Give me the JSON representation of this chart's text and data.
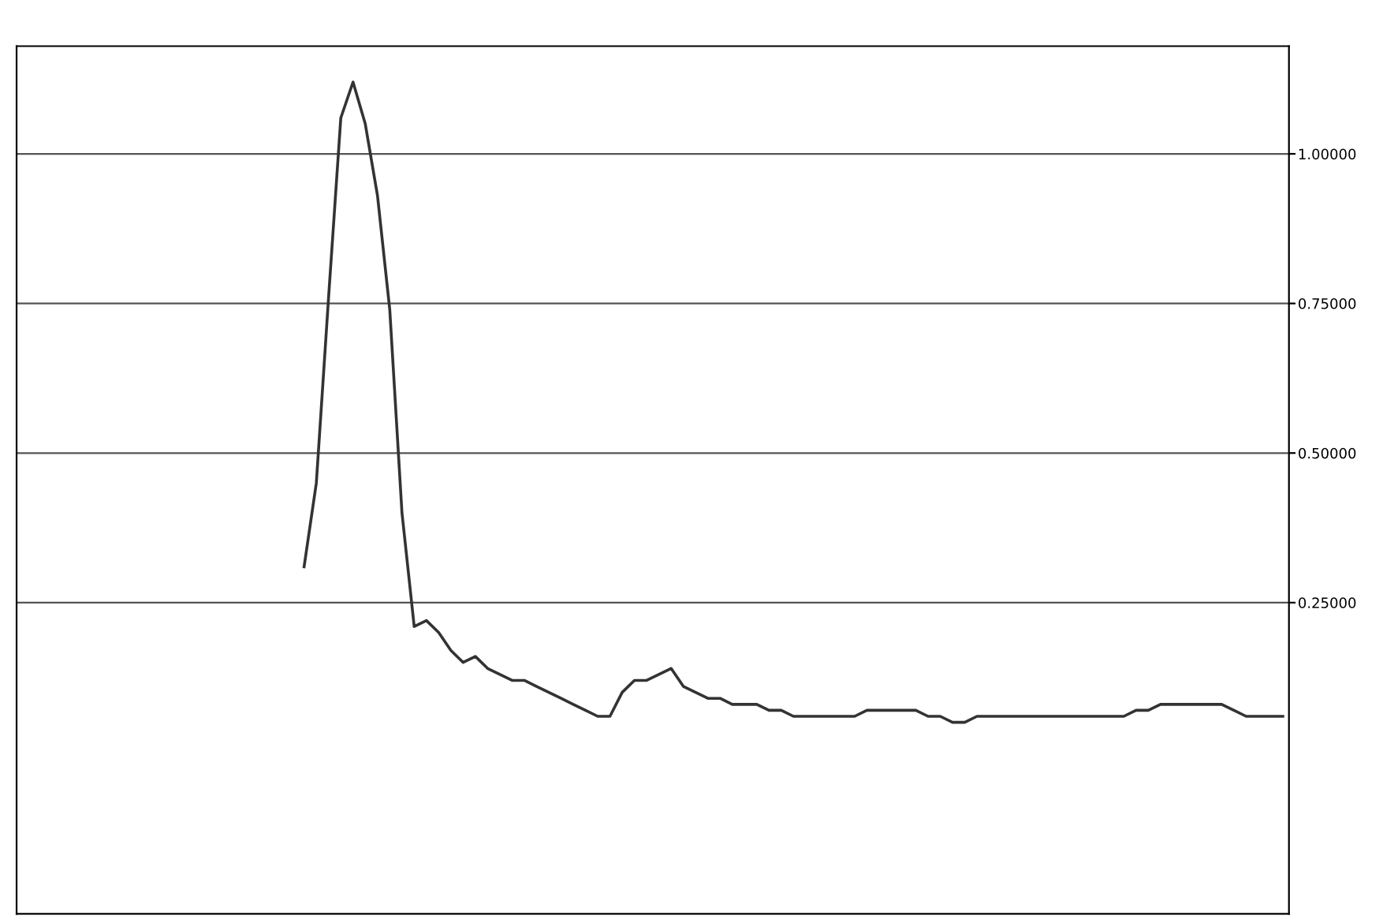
{
  "chart_data": {
    "type": "line",
    "categories": [
      null,
      null,
      null,
      null,
      null,
      null,
      null,
      null,
      null,
      null,
      null,
      null,
      null,
      null,
      null,
      null,
      null,
      null,
      null,
      null,
      null,
      null,
      null,
      null,
      null,
      null,
      null,
      null,
      null,
      null,
      null,
      null,
      null,
      null,
      null,
      null,
      null,
      null,
      null,
      null,
      null,
      null,
      null,
      null,
      null,
      null,
      null,
      null,
      null,
      null,
      null,
      null,
      null,
      null,
      null,
      null,
      null,
      null,
      null,
      null,
      null,
      null,
      null,
      null,
      null,
      null,
      null,
      null,
      null,
      null,
      null,
      null,
      null,
      null,
      null,
      null,
      null,
      null,
      null,
      null,
      null,
      null,
      null,
      null,
      null,
      null,
      null,
      null,
      null,
      null,
      null,
      null,
      null,
      null,
      null,
      null,
      null,
      null,
      null,
      null,
      null,
      null,
      null,
      null
    ],
    "series": [
      {
        "color": "#333333",
        "values": [
          null,
          null,
          null,
          null,
          null,
          null,
          null,
          null,
          null,
          null,
          null,
          null,
          null,
          null,
          null,
          null,
          null,
          null,
          null,
          null,
          null,
          null,
          null,
          0.31,
          0.45,
          0.76,
          1.06,
          1.12,
          1.05,
          0.93,
          0.74,
          0.4,
          0.21,
          0.22,
          0.2,
          0.17,
          0.15,
          0.16,
          0.14,
          0.13,
          0.12,
          0.12,
          0.11,
          0.1,
          0.09,
          0.08,
          0.07,
          0.06,
          0.06,
          0.1,
          0.12,
          0.12,
          0.13,
          0.14,
          0.11,
          0.1,
          0.09,
          0.09,
          0.08,
          0.08,
          0.08,
          0.07,
          0.07,
          0.06,
          0.06,
          0.06,
          0.06,
          0.06,
          0.06,
          0.07,
          0.07,
          0.07,
          0.07,
          0.07,
          0.06,
          0.06,
          0.05,
          0.05,
          0.06,
          0.06,
          0.06,
          0.06,
          0.06,
          0.06,
          0.06,
          0.06,
          0.06,
          0.06,
          0.06,
          0.06,
          0.06,
          0.07,
          0.07,
          0.08,
          0.08,
          0.08,
          0.08,
          0.08,
          0.08,
          0.07,
          0.06,
          0.06,
          0.06,
          0.06
        ]
      }
    ],
    "ylim": [
      -0.27,
      1.18
    ],
    "yticks": [
      {
        "value": 0.25,
        "label": "0.25000"
      },
      {
        "value": 0.5,
        "label": "0.50000"
      },
      {
        "value": 0.75,
        "label": "0.75000"
      },
      {
        "value": 1.0,
        "label": "1.00000"
      }
    ],
    "grid": "y",
    "tick_labels": "y",
    "legend": false,
    "marker": "none",
    "line_style": "solid"
  }
}
